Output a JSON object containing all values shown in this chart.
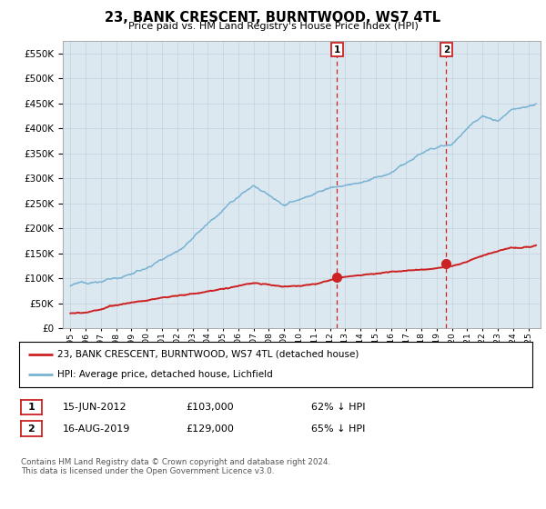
{
  "title": "23, BANK CRESCENT, BURNTWOOD, WS7 4TL",
  "subtitle": "Price paid vs. HM Land Registry's House Price Index (HPI)",
  "hpi_color": "#7ab3d4",
  "price_color": "#cc2222",
  "background_color": "#ffffff",
  "grid_color": "#c8d4e0",
  "plot_bg_color": "#dce8f0",
  "ylim": [
    0,
    575000
  ],
  "yticks": [
    0,
    50000,
    100000,
    150000,
    200000,
    250000,
    300000,
    350000,
    400000,
    450000,
    500000,
    550000
  ],
  "sale1_x": 2012.46,
  "sale1_price": 103000,
  "sale2_x": 2019.62,
  "sale2_price": 129000,
  "legend_line1": "23, BANK CRESCENT, BURNTWOOD, WS7 4TL (detached house)",
  "legend_line2": "HPI: Average price, detached house, Lichfield",
  "footnote": "Contains HM Land Registry data © Crown copyright and database right 2024.\nThis data is licensed under the Open Government Licence v3.0.",
  "xmin": 1994.5,
  "xmax": 2025.8
}
